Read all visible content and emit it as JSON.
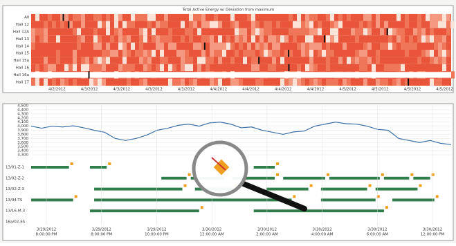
{
  "heatmap": {
    "title": "Total Active Energy w/ Deviation from maximum",
    "rows": [
      "All",
      "Hall 12",
      "Hall 12A",
      "Hall 13",
      "Hall 14",
      "Hall 15",
      "Hall 15a",
      "Hall 16",
      "Hall 16a",
      "Hall 17"
    ],
    "x_labels": [
      "4/2/2012",
      "4/3/2012",
      "4/3/2012",
      "4/3/2012",
      "4/3/2012",
      "4/4/2012",
      "4/4/2012",
      "4/4/2012",
      "4/4/2012",
      "4/5/2012",
      "4/5/2012",
      "4/5/2012",
      "4/5/2012"
    ]
  },
  "chart_data": {
    "type": "line",
    "ylim": [
      3300,
      4500
    ],
    "yticks": [
      {
        "value": 3300,
        "label": "3,300"
      },
      {
        "value": 3400,
        "label": "3,400"
      },
      {
        "value": 3500,
        "label": "3,500"
      },
      {
        "value": 3600,
        "label": "3,600"
      },
      {
        "value": 3700,
        "label": "3,700"
      },
      {
        "value": 3800,
        "label": "3,800"
      },
      {
        "value": 3900,
        "label": "3,900"
      },
      {
        "value": 4000,
        "label": "4,000"
      },
      {
        "value": 4100,
        "label": "4,100"
      },
      {
        "value": 4200,
        "label": "4,200"
      },
      {
        "value": 4300,
        "label": "4,300"
      },
      {
        "value": 4400,
        "label": "4,400"
      },
      {
        "value": 4500,
        "label": "4,500"
      }
    ],
    "series": [
      {
        "color": "#3b6fa8",
        "values": [
          4000,
          3950,
          4000,
          3980,
          4010,
          3960,
          3900,
          3850,
          3700,
          3650,
          3700,
          3780,
          3900,
          3950,
          4020,
          4050,
          4000,
          4080,
          4100,
          4050,
          3960,
          3980,
          3900,
          3850,
          3800,
          3860,
          3880,
          4000,
          4050,
          4100,
          4060,
          4050,
          4000,
          3920,
          3900,
          3700,
          3650,
          3600,
          3650,
          3580,
          3550
        ]
      }
    ]
  },
  "gantt": {
    "xlim": [
      0,
      100
    ],
    "rows": [
      {
        "label": "13/01-Z-1",
        "bars": [
          [
            0,
            9
          ],
          [
            14,
            18
          ],
          [
            53,
            58
          ]
        ]
      },
      {
        "label": "13/02-Z-2",
        "bars": [
          [
            31,
            37
          ],
          [
            38,
            46
          ],
          [
            48,
            58
          ],
          [
            60,
            70
          ],
          [
            71,
            83
          ],
          [
            84,
            90
          ],
          [
            91,
            95
          ]
        ]
      },
      {
        "label": "13/02-Z-3",
        "bars": [
          [
            15,
            36
          ],
          [
            39,
            48
          ],
          [
            56,
            66
          ],
          [
            69,
            80
          ],
          [
            82,
            92
          ]
        ]
      },
      {
        "label": "13/04-TS",
        "bars": [
          [
            0,
            10
          ],
          [
            15,
            62
          ],
          [
            69,
            82
          ],
          [
            86,
            96
          ]
        ]
      },
      {
        "label": "13/16-M-3",
        "bars": [
          [
            14,
            40
          ],
          [
            53,
            84
          ]
        ]
      },
      {
        "label": "16a/02-ES",
        "bars": []
      }
    ],
    "x_labels": [
      [
        "3/29/2012",
        "8:00:00 PM"
      ],
      [
        "3/29/2012",
        "8:00:00 PM"
      ],
      [
        "3/29/2012",
        "10:00:00 PM"
      ],
      [
        "3/30/2012",
        "12:00:00 AM"
      ],
      [
        "3/30/2012",
        "2:00:00 AM"
      ],
      [
        "3/30/2012",
        "4:00:00 AM"
      ],
      [
        "3/30/2012",
        "6:00:00 AM"
      ],
      [
        "3/30/2012",
        "12:00:00 PM"
      ]
    ]
  }
}
